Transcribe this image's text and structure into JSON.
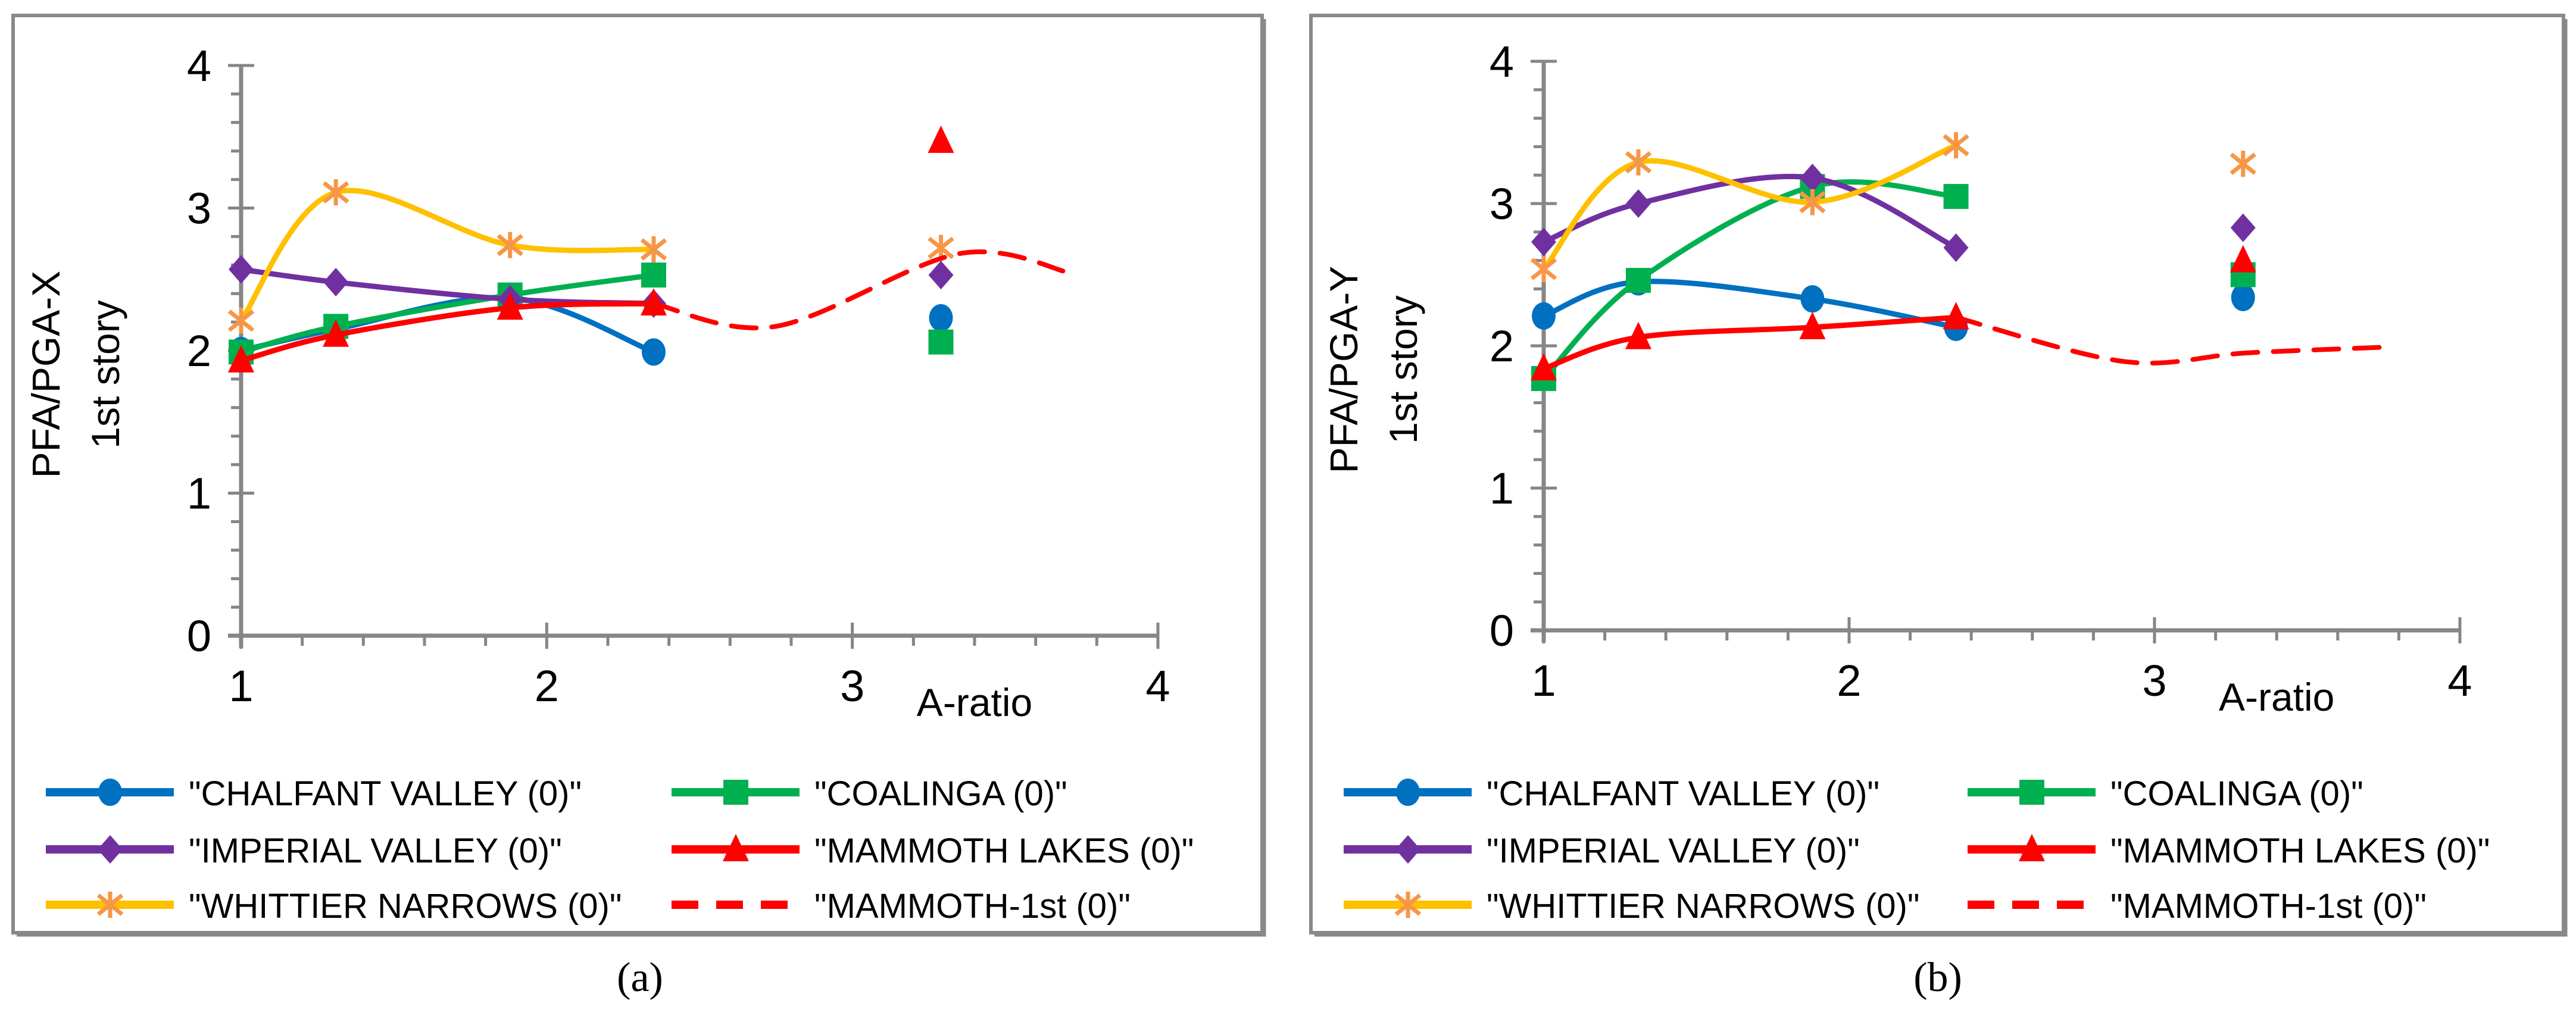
{
  "colors": {
    "chalfant": "#0070C0",
    "coalinga": "#00B050",
    "imperial": "#7030A0",
    "mammoth": "#FF0000",
    "whittier_line": "#FFC000",
    "whittier_marker": "#F79646",
    "axis": "#868686",
    "frame": "#898989"
  },
  "chart_data": [
    {
      "type": "line",
      "panel_label": "(a)",
      "ylabel_line1": "PFA/PGA-X",
      "ylabel_line2": "1st story",
      "xlabel": "A-ratio",
      "xlim": [
        1,
        4
      ],
      "ylim": [
        0,
        4
      ],
      "xticks": [
        "1",
        "2",
        "3",
        "4"
      ],
      "yticks": [
        "0",
        "1",
        "2",
        "3",
        "4"
      ],
      "grid": false,
      "legend_position": "bottom",
      "series": [
        {
          "name": "\"CHALFANT VALLEY (0)\"",
          "color_key": "chalfant",
          "marker": "circle",
          "x": [
            1,
            1.31,
            1.88,
            2.35
          ],
          "y": [
            2.0,
            2.15,
            2.37,
            1.99
          ],
          "separate_point": {
            "x": 3.29,
            "y": 2.23
          }
        },
        {
          "name": "\"COALINGA (0)\"",
          "color_key": "coalinga",
          "marker": "square",
          "x": [
            1,
            1.31,
            1.88,
            2.35
          ],
          "y": [
            1.99,
            2.17,
            2.39,
            2.53
          ],
          "separate_point": {
            "x": 3.29,
            "y": 2.06
          }
        },
        {
          "name": "\"IMPERIAL VALLEY (0)\"",
          "color_key": "imperial",
          "marker": "diamond",
          "x": [
            1,
            1.31,
            1.88,
            2.35
          ],
          "y": [
            2.57,
            2.48,
            2.36,
            2.33
          ],
          "separate_point": {
            "x": 3.29,
            "y": 2.53
          }
        },
        {
          "name": "\"MAMMOTH LAKES (0)\"",
          "color_key": "mammoth",
          "marker": "triangle",
          "x": [
            1,
            1.31,
            1.88,
            2.35
          ],
          "y": [
            1.93,
            2.11,
            2.3,
            2.33
          ],
          "separate_point": {
            "x": 3.29,
            "y": 3.47
          }
        },
        {
          "name": "\"WHITTIER NARROWS (0)\"",
          "color_key": "whittier_line",
          "marker": "star",
          "x": [
            1,
            1.31,
            1.88,
            2.35
          ],
          "y": [
            2.21,
            3.11,
            2.74,
            2.71
          ],
          "separate_point": {
            "x": 3.29,
            "y": 2.72
          }
        },
        {
          "name": "\"MAMMOTH-1st (0)\"",
          "color_key": "mammoth",
          "marker": "none",
          "dashed": true,
          "x": [
            2.35,
            2.75,
            3.35,
            3.72
          ],
          "y": [
            2.33,
            2.17,
            2.68,
            2.54
          ]
        }
      ]
    },
    {
      "type": "line",
      "panel_label": "(b)",
      "ylabel_line1": "PFA/PGA-Y",
      "ylabel_line2": "1st story",
      "xlabel": "A-ratio",
      "xlim": [
        1,
        4
      ],
      "ylim": [
        0,
        4
      ],
      "xticks": [
        "1",
        "2",
        "3",
        "4"
      ],
      "yticks": [
        "0",
        "1",
        "2",
        "3",
        "4"
      ],
      "grid": false,
      "legend_position": "bottom",
      "series": [
        {
          "name": "\"CHALFANT VALLEY (0)\"",
          "color_key": "chalfant",
          "marker": "circle",
          "x": [
            1,
            1.31,
            1.88,
            2.35
          ],
          "y": [
            2.21,
            2.45,
            2.33,
            2.13
          ],
          "separate_point": {
            "x": 3.29,
            "y": 2.34
          }
        },
        {
          "name": "\"COALINGA (0)\"",
          "color_key": "coalinga",
          "marker": "square",
          "x": [
            1,
            1.31,
            1.88,
            2.35
          ],
          "y": [
            1.77,
            2.46,
            3.12,
            3.05
          ],
          "separate_point": {
            "x": 3.29,
            "y": 2.5
          }
        },
        {
          "name": "\"IMPERIAL VALLEY (0)\"",
          "color_key": "imperial",
          "marker": "diamond",
          "x": [
            1,
            1.31,
            1.88,
            2.35
          ],
          "y": [
            2.73,
            3.0,
            3.18,
            2.69
          ],
          "separate_point": {
            "x": 3.29,
            "y": 2.83
          }
        },
        {
          "name": "\"MAMMOTH LAKES (0)\"",
          "color_key": "mammoth",
          "marker": "triangle",
          "x": [
            1,
            1.31,
            1.88,
            2.35
          ],
          "y": [
            1.84,
            2.06,
            2.13,
            2.2
          ],
          "separate_point": {
            "x": 3.29,
            "y": 2.6
          }
        },
        {
          "name": "\"WHITTIER NARROWS (0)\"",
          "color_key": "whittier_line",
          "marker": "star",
          "x": [
            1,
            1.31,
            1.88,
            2.35
          ],
          "y": [
            2.54,
            3.29,
            3.01,
            3.41
          ],
          "separate_point": {
            "x": 3.29,
            "y": 3.28
          }
        },
        {
          "name": "\"MAMMOTH-1st (0)\"",
          "color_key": "mammoth",
          "marker": "none",
          "dashed": true,
          "x": [
            2.35,
            2.9,
            3.3,
            3.75
          ],
          "y": [
            2.2,
            1.89,
            1.95,
            1.99
          ]
        }
      ]
    }
  ]
}
